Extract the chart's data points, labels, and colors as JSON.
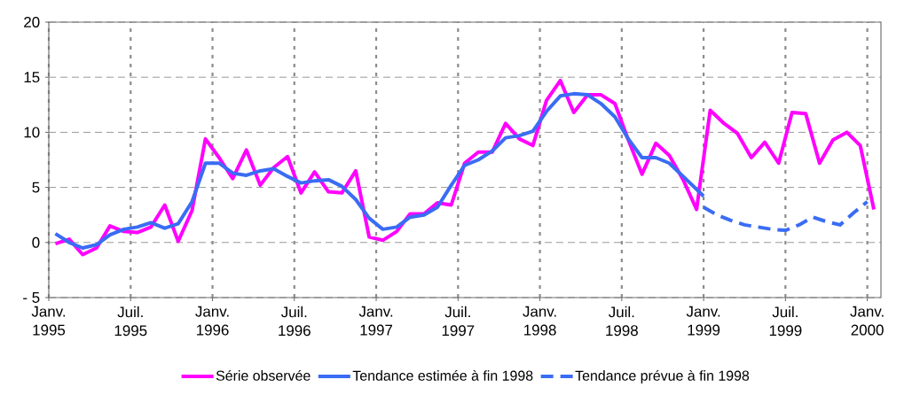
{
  "chart_data": {
    "type": "line",
    "xlim": [
      "1995-01-01",
      "2000-02-01"
    ],
    "xticks": [
      {
        "value": "1995-01-01",
        "label": "Janv. 1995"
      },
      {
        "value": "1995-07-01",
        "label": "Juil. 1995"
      },
      {
        "value": "1996-01-01",
        "label": "Janv. 1996"
      },
      {
        "value": "1996-07-01",
        "label": "Juil. 1996"
      },
      {
        "value": "1997-01-01",
        "label": "Janv. 1997"
      },
      {
        "value": "1997-07-01",
        "label": "Juil. 1997"
      },
      {
        "value": "1998-01-01",
        "label": "Janv. 1998"
      },
      {
        "value": "1998-07-01",
        "label": "Juil. 1998"
      },
      {
        "value": "1999-01-01",
        "label": "Janv. 1999"
      },
      {
        "value": "1999-07-01",
        "label": "Juil. 1999"
      },
      {
        "value": "2000-01-01",
        "label": "Janv. 2000"
      }
    ],
    "ylim": [
      -5,
      20
    ],
    "yticks": [
      {
        "value": -5,
        "label": "- 5"
      },
      0,
      5,
      10,
      15,
      20
    ],
    "grid": true,
    "legend": "bottom",
    "marker": "none",
    "series": [
      {
        "name": "Série observée",
        "color": "#ff00ff",
        "line_style": "solid",
        "x": [
          "1995-01-16",
          "1995-02-15",
          "1995-03-16",
          "1995-04-16",
          "1995-05-16",
          "1995-06-16",
          "1995-07-16",
          "1995-08-16",
          "1995-09-16",
          "1995-10-16",
          "1995-11-16",
          "1995-12-16",
          "1996-01-16",
          "1996-02-15",
          "1996-03-16",
          "1996-04-16",
          "1996-05-16",
          "1996-06-16",
          "1996-07-16",
          "1996-08-16",
          "1996-09-16",
          "1996-10-16",
          "1996-11-16",
          "1996-12-16",
          "1997-01-16",
          "1997-02-15",
          "1997-03-16",
          "1997-04-16",
          "1997-05-16",
          "1997-06-16",
          "1997-07-16",
          "1997-08-16",
          "1997-09-16",
          "1997-10-16",
          "1997-11-16",
          "1997-12-16",
          "1998-01-16",
          "1998-02-15",
          "1998-03-16",
          "1998-04-16",
          "1998-05-16",
          "1998-06-16",
          "1998-07-16",
          "1998-08-16",
          "1998-09-16",
          "1998-10-16",
          "1998-11-16",
          "1998-12-16",
          "1999-01-16",
          "1999-02-15",
          "1999-03-16",
          "1999-04-16",
          "1999-05-16",
          "1999-06-16",
          "1999-07-16",
          "1999-08-16",
          "1999-09-16",
          "1999-10-16",
          "1999-11-16",
          "1999-12-16",
          "2000-01-16"
        ],
        "values": [
          -0.1,
          0.3,
          -1.1,
          -0.5,
          1.5,
          1.0,
          0.9,
          1.4,
          3.4,
          0.1,
          2.9,
          9.4,
          7.7,
          5.8,
          8.4,
          5.2,
          6.8,
          7.8,
          4.5,
          6.4,
          4.6,
          4.5,
          6.5,
          0.5,
          0.2,
          1.0,
          2.6,
          2.6,
          3.6,
          3.4,
          7.2,
          8.2,
          8.2,
          10.8,
          9.4,
          8.8,
          12.9,
          14.7,
          11.8,
          13.4,
          13.4,
          12.6,
          9.3,
          6.2,
          9.0,
          7.9,
          5.7,
          3.0,
          12.0,
          10.8,
          9.9,
          7.7,
          9.1,
          7.2,
          11.8,
          11.7,
          7.2,
          9.3,
          10.0,
          8.8,
          3.0
        ]
      },
      {
        "name": "Tendance estimée à fin 1998",
        "color": "#3a6cf4",
        "line_style": "solid",
        "x": [
          "1995-01-16",
          "1995-02-15",
          "1995-03-16",
          "1995-04-16",
          "1995-05-16",
          "1995-06-16",
          "1995-07-16",
          "1995-08-16",
          "1995-09-16",
          "1995-10-16",
          "1995-11-16",
          "1995-12-16",
          "1996-01-16",
          "1996-02-15",
          "1996-03-16",
          "1996-04-16",
          "1996-05-16",
          "1996-06-16",
          "1996-07-16",
          "1996-08-16",
          "1996-09-16",
          "1996-10-16",
          "1996-11-16",
          "1996-12-16",
          "1997-01-16",
          "1997-02-15",
          "1997-03-16",
          "1997-04-16",
          "1997-05-16",
          "1997-06-16",
          "1997-07-16",
          "1997-08-16",
          "1997-09-16",
          "1997-10-16",
          "1997-11-16",
          "1997-12-16",
          "1998-01-16",
          "1998-02-15",
          "1998-03-16",
          "1998-04-16",
          "1998-05-16",
          "1998-06-16",
          "1998-07-16",
          "1998-08-16",
          "1998-09-16",
          "1998-10-16",
          "1998-11-16",
          "1999-01-01"
        ],
        "values": [
          0.8,
          0.0,
          -0.5,
          -0.2,
          0.7,
          1.2,
          1.4,
          1.8,
          1.3,
          1.7,
          3.7,
          7.2,
          7.2,
          6.3,
          6.1,
          6.5,
          6.7,
          6.0,
          5.4,
          5.6,
          5.7,
          5.1,
          3.9,
          2.2,
          1.2,
          1.4,
          2.3,
          2.5,
          3.2,
          5.2,
          7.0,
          7.5,
          8.3,
          9.5,
          9.7,
          10.1,
          11.9,
          13.3,
          13.5,
          13.4,
          12.6,
          11.4,
          9.4,
          7.7,
          7.7,
          7.2,
          6.0,
          4.2
        ]
      },
      {
        "name": "Tendance prévue à fin 1998",
        "color": "#3a6cf4",
        "line_style": "dashed",
        "x": [
          "1999-01-01",
          "1999-02-01",
          "1999-03-01",
          "1999-04-01",
          "1999-05-01",
          "1999-06-01",
          "1999-07-01",
          "1999-08-01",
          "1999-09-01",
          "1999-10-01",
          "1999-11-01",
          "1999-12-01",
          "2000-01-01"
        ],
        "values": [
          3.2,
          2.5,
          2.0,
          1.6,
          1.4,
          1.2,
          1.1,
          1.6,
          2.3,
          1.9,
          1.6,
          2.7,
          3.7
        ]
      }
    ]
  }
}
